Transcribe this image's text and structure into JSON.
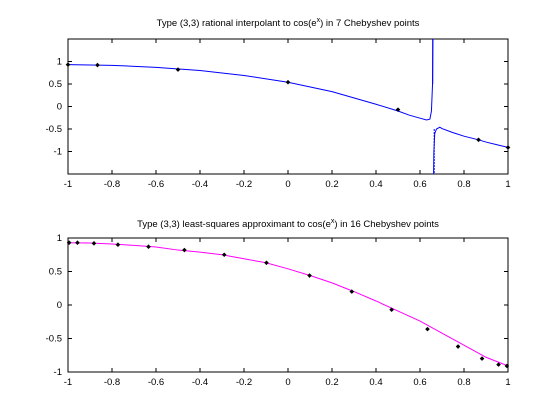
{
  "chart_data": [
    {
      "type": "line",
      "title": "Type (3,3) rational interpolant to cos(e^x) in 7 Chebyshev points",
      "title_parts": [
        "Type (3,3) rational interpolant to cos(e",
        "x",
        ") in 7 Chebyshev points"
      ],
      "xlim": [
        -1,
        1
      ],
      "ylim": [
        -1.5,
        1.5
      ],
      "xticks": [
        -1,
        -0.8,
        -0.6,
        -0.4,
        -0.2,
        0,
        0.2,
        0.4,
        0.6,
        0.8,
        1
      ],
      "xtick_labels": [
        "-1",
        "-0.8",
        "-0.6",
        "-0.4",
        "-0.2",
        "0",
        "0.2",
        "0.4",
        "0.6",
        "0.8",
        "1"
      ],
      "yticks": [
        -1,
        -0.5,
        0,
        0.5,
        1
      ],
      "ytick_labels": [
        "-1",
        "-0.5",
        "0",
        "0.5",
        "1"
      ],
      "line_color": "#0000ff",
      "marker_color": "#000000",
      "pole_x": 0.66,
      "curve": {
        "x": [
          -1,
          -0.8,
          -0.6,
          -0.4,
          -0.2,
          0,
          0.2,
          0.4,
          0.5,
          0.55,
          0.6,
          0.63,
          0.645,
          0.652,
          0.657,
          0.659,
          0.6615,
          0.663,
          0.667,
          0.675,
          0.69,
          0.7,
          0.75,
          0.8,
          0.866,
          0.9,
          0.95,
          1
        ],
        "y": [
          0.93,
          0.915,
          0.87,
          0.8,
          0.69,
          0.54,
          0.33,
          0.05,
          -0.1,
          -0.19,
          -0.26,
          -0.3,
          -0.28,
          -0.1,
          0.5,
          1.6,
          -1.6,
          -1.0,
          -0.6,
          -0.5,
          -0.46,
          -0.49,
          -0.58,
          -0.66,
          -0.74,
          -0.79,
          -0.85,
          -0.91
        ]
      },
      "points": {
        "x": [
          -1,
          -0.866,
          -0.5,
          0,
          0.5,
          0.866,
          1
        ],
        "y": [
          0.93,
          0.92,
          0.82,
          0.54,
          -0.07,
          -0.74,
          -0.91
        ]
      }
    },
    {
      "type": "line",
      "title": "Type (3,3) least-squares approximant to cos(e^x) in 16 Chebyshev points",
      "title_parts": [
        "Type (3,3) least-squares approximant to cos(e",
        "x",
        ") in 16 Chebyshev points"
      ],
      "xlim": [
        -1,
        1
      ],
      "ylim": [
        -1,
        1
      ],
      "xticks": [
        -1,
        -0.8,
        -0.6,
        -0.4,
        -0.2,
        0,
        0.2,
        0.4,
        0.6,
        0.8,
        1
      ],
      "xtick_labels": [
        "-1",
        "-0.8",
        "-0.6",
        "-0.4",
        "-0.2",
        "0",
        "0.2",
        "0.4",
        "0.6",
        "0.8",
        "1"
      ],
      "yticks": [
        -1,
        -0.5,
        0,
        0.5,
        1
      ],
      "ytick_labels": [
        "-1",
        "-0.5",
        "0",
        "0.5",
        "1"
      ],
      "line_color": "#ff00ff",
      "marker_color": "#000000",
      "curve": {
        "x": [
          -1,
          -0.9,
          -0.8,
          -0.7,
          -0.6,
          -0.5,
          -0.4,
          -0.3,
          -0.2,
          -0.1,
          0,
          0.1,
          0.2,
          0.3,
          0.4,
          0.5,
          0.6,
          0.7,
          0.8,
          0.9,
          1
        ],
        "y": [
          0.93,
          0.925,
          0.91,
          0.89,
          0.865,
          0.82,
          0.79,
          0.75,
          0.69,
          0.63,
          0.54,
          0.44,
          0.33,
          0.2,
          0.06,
          -0.09,
          -0.24,
          -0.42,
          -0.6,
          -0.78,
          -0.91
        ]
      },
      "points": {
        "x": [
          -0.995,
          -0.957,
          -0.882,
          -0.773,
          -0.634,
          -0.471,
          -0.29,
          -0.098,
          0.098,
          0.29,
          0.471,
          0.634,
          0.773,
          0.882,
          0.957,
          0.995
        ],
        "y": [
          0.93,
          0.93,
          0.92,
          0.9,
          0.87,
          0.82,
          0.75,
          0.63,
          0.44,
          0.2,
          -0.07,
          -0.36,
          -0.62,
          -0.8,
          -0.89,
          -0.91
        ]
      }
    }
  ]
}
